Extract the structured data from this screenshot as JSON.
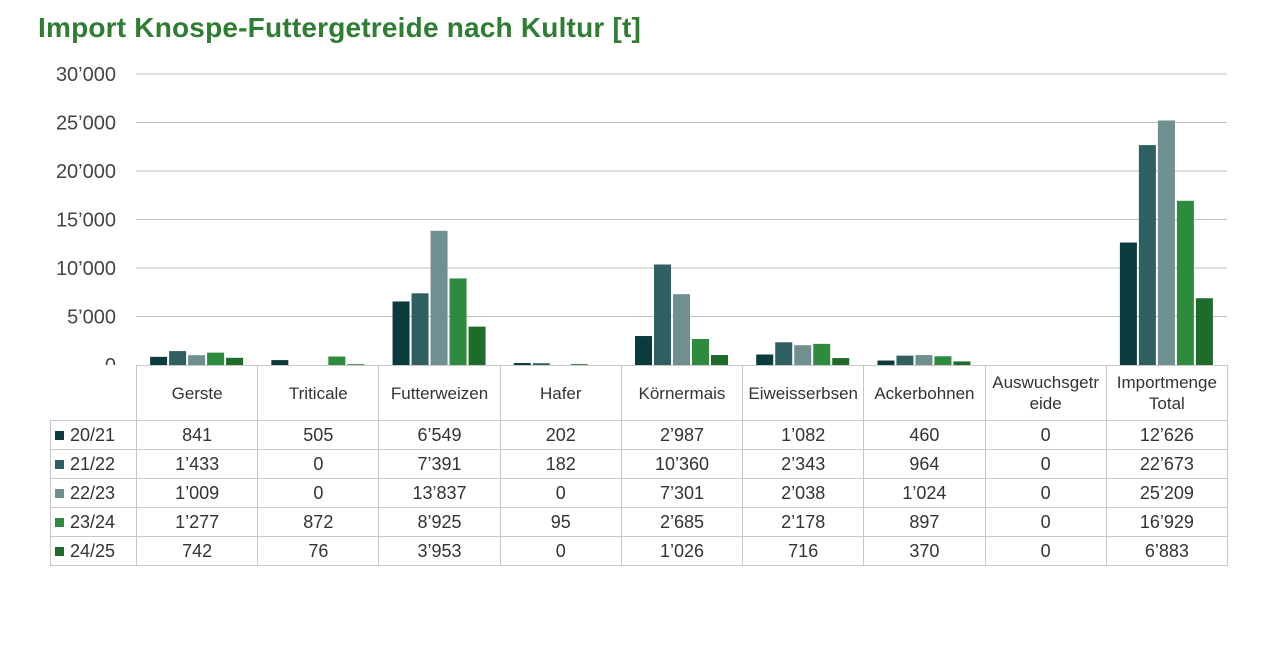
{
  "title": "Import Knospe-Futtergetreide nach Kultur [t]",
  "chart_data": {
    "type": "bar",
    "title": "Import Knospe-Futtergetreide nach Kultur [t]",
    "categories": [
      "Gerste",
      "Triticale",
      "Futterweizen",
      "Hafer",
      "Körnermais",
      "Eiweisserbsen",
      "Ackerbohnen",
      "Auswuchsgetr eide",
      "Importmenge Total"
    ],
    "ylim": [
      0,
      30000
    ],
    "yticks": [
      0,
      5000,
      10000,
      15000,
      20000,
      25000,
      30000
    ],
    "ytick_labels": [
      "0",
      "5’000",
      "10’000",
      "15’000",
      "20’000",
      "25’000",
      "30’000"
    ],
    "grid": true,
    "legend": "table-left",
    "series": [
      {
        "name": "20/21",
        "color": "#0b3b3c",
        "values": [
          841,
          505,
          6549,
          202,
          2987,
          1082,
          460,
          0,
          12626
        ],
        "labels": [
          "841",
          "505",
          "6’549",
          "202",
          "2’987",
          "1’082",
          "460",
          "0",
          "12’626"
        ]
      },
      {
        "name": "21/22",
        "color": "#2f5f60",
        "values": [
          1433,
          0,
          7391,
          182,
          10360,
          2343,
          964,
          0,
          22673
        ],
        "labels": [
          "1’433",
          "0",
          "7’391",
          "182",
          "10’360",
          "2’343",
          "964",
          "0",
          "22’673"
        ]
      },
      {
        "name": "22/23",
        "color": "#6f8f90",
        "values": [
          1009,
          0,
          13837,
          0,
          7301,
          2038,
          1024,
          0,
          25209
        ],
        "labels": [
          "1’009",
          "0",
          "13’837",
          "0",
          "7’301",
          "2’038",
          "1’024",
          "0",
          "25’209"
        ]
      },
      {
        "name": "23/24",
        "color": "#2e8b3d",
        "values": [
          1277,
          872,
          8925,
          95,
          2685,
          2178,
          897,
          0,
          16929
        ],
        "labels": [
          "1’277",
          "872",
          "8’925",
          "95",
          "2’685",
          "2’178",
          "897",
          "0",
          "16’929"
        ]
      },
      {
        "name": "24/25",
        "color": "#1f6b2a",
        "values": [
          742,
          76,
          3953,
          0,
          1026,
          716,
          370,
          0,
          6883
        ],
        "labels": [
          "742",
          "76",
          "3’953",
          "0",
          "1’026",
          "716",
          "370",
          "0",
          "6’883"
        ]
      }
    ]
  }
}
